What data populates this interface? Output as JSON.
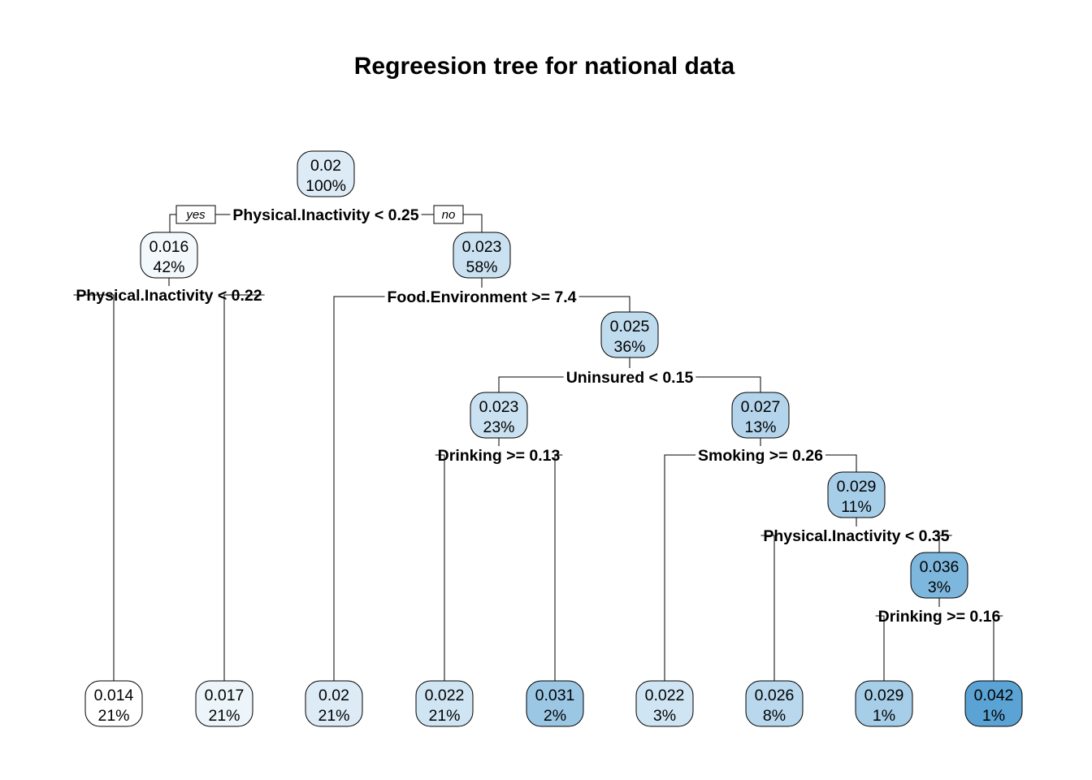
{
  "title": "Regreesion tree for national data",
  "colors": {
    "low": "#ffffff",
    "high": "#5ba3d4"
  },
  "color_range": [
    0.014,
    0.042
  ],
  "branch_labels": {
    "yes": "yes",
    "no": "no"
  },
  "nodes": [
    {
      "id": "n1",
      "value": "0.02",
      "pct": "100%",
      "num": 0.02
    },
    {
      "id": "n2",
      "value": "0.016",
      "pct": "42%",
      "num": 0.016
    },
    {
      "id": "n3",
      "value": "0.023",
      "pct": "58%",
      "num": 0.023
    },
    {
      "id": "n7",
      "value": "0.025",
      "pct": "36%",
      "num": 0.025
    },
    {
      "id": "n14",
      "value": "0.023",
      "pct": "23%",
      "num": 0.023
    },
    {
      "id": "n15",
      "value": "0.027",
      "pct": "13%",
      "num": 0.027
    },
    {
      "id": "n31",
      "value": "0.029",
      "pct": "11%",
      "num": 0.029
    },
    {
      "id": "n63",
      "value": "0.036",
      "pct": "3%",
      "num": 0.036
    },
    {
      "id": "L1",
      "value": "0.014",
      "pct": "21%",
      "num": 0.014
    },
    {
      "id": "L2",
      "value": "0.017",
      "pct": "21%",
      "num": 0.017
    },
    {
      "id": "L3",
      "value": "0.02",
      "pct": "21%",
      "num": 0.02
    },
    {
      "id": "L4",
      "value": "0.022",
      "pct": "21%",
      "num": 0.022
    },
    {
      "id": "L5",
      "value": "0.031",
      "pct": "2%",
      "num": 0.031
    },
    {
      "id": "L6",
      "value": "0.022",
      "pct": "3%",
      "num": 0.022
    },
    {
      "id": "L7",
      "value": "0.026",
      "pct": "8%",
      "num": 0.026
    },
    {
      "id": "L8",
      "value": "0.029",
      "pct": "1%",
      "num": 0.029
    },
    {
      "id": "L9",
      "value": "0.042",
      "pct": "1%",
      "num": 0.042
    }
  ],
  "splits": [
    {
      "id": "s1",
      "label": "Physical.Inactivity < 0.25"
    },
    {
      "id": "s2",
      "label": "Physical.Inactivity < 0.22"
    },
    {
      "id": "s3",
      "label": "Food.Environment >= 7.4"
    },
    {
      "id": "s7",
      "label": "Uninsured < 0.15"
    },
    {
      "id": "s14",
      "label": "Drinking >= 0.13"
    },
    {
      "id": "s15",
      "label": "Smoking >= 0.26"
    },
    {
      "id": "s31",
      "label": "Physical.Inactivity < 0.35"
    },
    {
      "id": "s63",
      "label": "Drinking >= 0.16"
    }
  ]
}
